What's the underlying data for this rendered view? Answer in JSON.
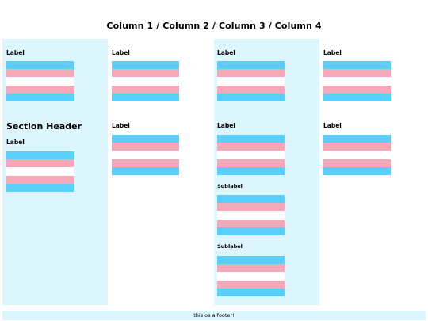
{
  "page": {
    "title": "Column 1 / Column 2 / Column 3 / Column 4",
    "footer": "this os a footer!"
  },
  "columns": [
    {
      "label_1": "Label",
      "section_header": "Section Header",
      "label_2": "Label"
    },
    {
      "label_1": "Label",
      "label_2": "Label"
    },
    {
      "label_1": "Label",
      "label_2": "Label",
      "sublabel_1": "Sublabel",
      "sublabel_2": "Sublabel"
    },
    {
      "label_1": "Label",
      "label_2": "Label"
    }
  ],
  "colors": {
    "column_background": "#ddf6fd",
    "flag_blue": "#5bcefa",
    "flag_pink": "#f5a9b8",
    "flag_white": "#ffffff"
  }
}
